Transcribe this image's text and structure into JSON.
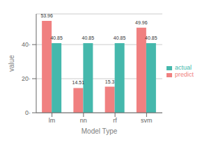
{
  "chart_data": {
    "type": "bar",
    "x_label": "Model Type",
    "y_label": "value",
    "categories": [
      "lm",
      "nn",
      "rf",
      "svm"
    ],
    "series": [
      {
        "name": "predict",
        "color": "#F08080",
        "values": [
          53.96,
          14.51,
          15.3,
          49.96
        ]
      },
      {
        "name": "actual",
        "color": "#45B8AC",
        "values": [
          40.85,
          40.85,
          40.85,
          40.85
        ]
      }
    ],
    "ylim": [
      0,
      58
    ],
    "yticks": [
      {
        "value": 0,
        "label": "0·"
      },
      {
        "value": 20,
        "label": "20·"
      },
      {
        "value": 40,
        "label": "40·"
      }
    ],
    "grid": true,
    "legend": "right",
    "data_labels": true
  }
}
